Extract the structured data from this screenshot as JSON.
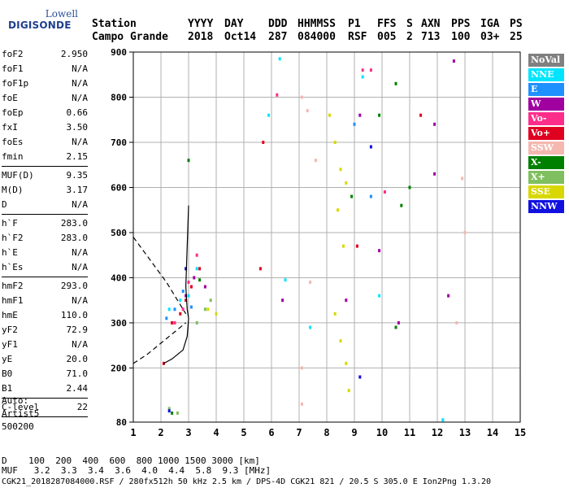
{
  "logo": {
    "top": "Lowell",
    "main": "DIGISONDE"
  },
  "header": {
    "columns": [
      {
        "label": "Station",
        "value": "Campo Grande"
      },
      {
        "label": "YYYY",
        "value": "2018"
      },
      {
        "label": "DAY",
        "value": "Oct14"
      },
      {
        "label": "DDD",
        "value": "287"
      },
      {
        "label": "HHMMSS",
        "value": "084000"
      },
      {
        "label": "P1",
        "value": "RSF"
      },
      {
        "label": "FFS",
        "value": "005"
      },
      {
        "label": "S",
        "value": "2"
      },
      {
        "label": "AXN",
        "value": "713"
      },
      {
        "label": "PPS",
        "value": "100"
      },
      {
        "label": "IGA",
        "value": "03+"
      },
      {
        "label": "PS",
        "value": "25"
      }
    ]
  },
  "params": [
    [
      {
        "name": "foF2",
        "value": "2.950"
      },
      {
        "name": "foF1",
        "value": "N/A"
      },
      {
        "name": "foF1p",
        "value": "N/A"
      },
      {
        "name": "foE",
        "value": "N/A"
      },
      {
        "name": "foEp",
        "value": "0.66"
      },
      {
        "name": "fxI",
        "value": "3.50"
      },
      {
        "name": "foEs",
        "value": "N/A"
      },
      {
        "name": "fmin",
        "value": "2.15"
      }
    ],
    [
      {
        "name": "MUF(D)",
        "value": "9.35"
      },
      {
        "name": "M(D)",
        "value": "3.17"
      },
      {
        "name": "D",
        "value": "N/A"
      }
    ],
    [
      {
        "name": "h`F",
        "value": "283.0"
      },
      {
        "name": "h`F2",
        "value": "283.0"
      },
      {
        "name": "h`E",
        "value": "N/A"
      },
      {
        "name": "h`Es",
        "value": "N/A"
      }
    ],
    [
      {
        "name": "hmF2",
        "value": "293.0"
      },
      {
        "name": "hmF1",
        "value": "N/A"
      },
      {
        "name": "hmE",
        "value": "110.0"
      },
      {
        "name": "yF2",
        "value": "72.9"
      },
      {
        "name": "yF1",
        "value": "N/A"
      },
      {
        "name": "yE",
        "value": "20.0"
      },
      {
        "name": "B0",
        "value": "71.0"
      },
      {
        "name": "B1",
        "value": "2.44"
      }
    ],
    [
      {
        "name": "C-level",
        "value": "22"
      }
    ]
  ],
  "auto": {
    "line1": "Auto:",
    "line2": "Artist5",
    "line3": "500200"
  },
  "legend": [
    {
      "label": "NoVal",
      "bg": "#808080",
      "fg": "#ffffff"
    },
    {
      "label": "NNE",
      "bg": "#00e5ff",
      "fg": "#ffffff"
    },
    {
      "label": "E",
      "bg": "#1e90ff",
      "fg": "#ffffff"
    },
    {
      "label": "W",
      "bg": "#a000a0",
      "fg": "#ffffff"
    },
    {
      "label": "Vo-",
      "bg": "#ff2d8a",
      "fg": "#ffffff"
    },
    {
      "label": "Vo+",
      "bg": "#e00020",
      "fg": "#ffffff"
    },
    {
      "label": "SSW",
      "bg": "#f4b8b0",
      "fg": "#ffffff"
    },
    {
      "label": "X-",
      "bg": "#008000",
      "fg": "#ffffff"
    },
    {
      "label": "X+",
      "bg": "#7fbf5f",
      "fg": "#ffffff"
    },
    {
      "label": "SSE",
      "bg": "#d8d800",
      "fg": "#ffffff"
    },
    {
      "label": "NNW",
      "bg": "#1010e0",
      "fg": "#ffffff"
    }
  ],
  "footer": {
    "row1": "D    100  200  400  600  800 1000 1500 3000 [km]",
    "row2": "MUF   3.2  3.3  3.4  3.6  4.0  4.4  5.8  9.3 [MHz]",
    "row3": "CGK21_2018287084000.RSF / 280fx512h 50 kHz 2.5 km / DPS-4D CGK21 821 / 20.5 S 305.0 E Ion2Png 1.3.20"
  },
  "chart_data": {
    "type": "scatter",
    "title": "",
    "xlabel": "",
    "ylabel": "",
    "xlim": [
      1,
      15
    ],
    "ylim": [
      80,
      900
    ],
    "xticks": [
      "1",
      "2",
      "3",
      "4",
      "5",
      "6",
      "7",
      "8",
      "9",
      "10",
      "11",
      "12",
      "13",
      "14",
      "15"
    ],
    "yticks": [
      "80",
      "200",
      "300",
      "400",
      "500",
      "600",
      "700",
      "800",
      "900"
    ],
    "series": [
      {
        "name": "NNE",
        "color": "#00e5ff",
        "points": [
          [
            2.3,
            330
          ],
          [
            2.7,
            350
          ],
          [
            3.0,
            360
          ],
          [
            3.3,
            420
          ],
          [
            9.3,
            845
          ],
          [
            5.9,
            760
          ],
          [
            6.3,
            885
          ],
          [
            6.5,
            395
          ],
          [
            9.9,
            360
          ],
          [
            12.2,
            85
          ],
          [
            7.4,
            290
          ]
        ]
      },
      {
        "name": "E",
        "color": "#1e90ff",
        "points": [
          [
            2.2,
            310
          ],
          [
            2.5,
            330
          ],
          [
            2.8,
            370
          ],
          [
            3.1,
            335
          ],
          [
            9.0,
            740
          ],
          [
            9.6,
            580
          ]
        ]
      },
      {
        "name": "W",
        "color": "#a000a0",
        "points": [
          [
            2.9,
            360
          ],
          [
            3.2,
            400
          ],
          [
            3.6,
            380
          ],
          [
            9.2,
            760
          ],
          [
            10.6,
            300
          ],
          [
            11.9,
            740
          ],
          [
            11.9,
            630
          ],
          [
            12.4,
            360
          ],
          [
            12.6,
            880
          ],
          [
            9.9,
            460
          ],
          [
            8.7,
            350
          ],
          [
            6.4,
            350
          ]
        ]
      },
      {
        "name": "Vo-",
        "color": "#ff2d8a",
        "points": [
          [
            2.5,
            300
          ],
          [
            2.8,
            330
          ],
          [
            3.0,
            390
          ],
          [
            3.3,
            450
          ],
          [
            9.3,
            860
          ],
          [
            9.6,
            860
          ],
          [
            6.2,
            805
          ],
          [
            10.1,
            590
          ]
        ]
      },
      {
        "name": "Vo+",
        "color": "#e00020",
        "points": [
          [
            2.4,
            300
          ],
          [
            2.7,
            320
          ],
          [
            2.9,
            350
          ],
          [
            3.1,
            380
          ],
          [
            3.4,
            420
          ],
          [
            2.1,
            210
          ],
          [
            5.7,
            700
          ],
          [
            5.6,
            420
          ],
          [
            9.1,
            470
          ],
          [
            11.4,
            760
          ]
        ]
      },
      {
        "name": "SSW",
        "color": "#f4b8b0",
        "points": [
          [
            7.1,
            800
          ],
          [
            7.3,
            770
          ],
          [
            7.4,
            390
          ],
          [
            7.1,
            200
          ],
          [
            12.9,
            620
          ],
          [
            13.0,
            500
          ],
          [
            12.7,
            300
          ],
          [
            7.6,
            660
          ],
          [
            7.1,
            120
          ]
        ]
      },
      {
        "name": "X-",
        "color": "#008000",
        "points": [
          [
            3.0,
            660
          ],
          [
            2.4,
            100
          ],
          [
            10.5,
            830
          ],
          [
            11.0,
            600
          ],
          [
            10.7,
            560
          ],
          [
            10.5,
            290
          ],
          [
            9.9,
            760
          ],
          [
            8.9,
            580
          ],
          [
            3.4,
            395
          ]
        ]
      },
      {
        "name": "X+",
        "color": "#7fbf5f",
        "points": [
          [
            2.3,
            110
          ],
          [
            2.6,
            100
          ],
          [
            3.6,
            330
          ],
          [
            3.8,
            350
          ],
          [
            3.3,
            300
          ]
        ]
      },
      {
        "name": "SSE",
        "color": "#d8d800",
        "points": [
          [
            8.1,
            760
          ],
          [
            8.3,
            700
          ],
          [
            8.5,
            640
          ],
          [
            8.7,
            610
          ],
          [
            8.4,
            550
          ],
          [
            8.6,
            470
          ],
          [
            8.3,
            320
          ],
          [
            8.5,
            260
          ],
          [
            8.7,
            210
          ],
          [
            8.8,
            150
          ],
          [
            3.7,
            330
          ],
          [
            4.0,
            320
          ]
        ]
      },
      {
        "name": "NNW",
        "color": "#1010e0",
        "points": [
          [
            2.3,
            105
          ],
          [
            2.9,
            420
          ],
          [
            9.2,
            180
          ],
          [
            9.6,
            690
          ]
        ]
      }
    ],
    "curves": [
      {
        "style": "solid",
        "color": "#000000",
        "points": [
          [
            2.1,
            210
          ],
          [
            2.4,
            220
          ],
          [
            2.6,
            230
          ],
          [
            2.8,
            240
          ],
          [
            2.95,
            270
          ],
          [
            3.0,
            310
          ],
          [
            2.95,
            330
          ],
          [
            2.9,
            380
          ],
          [
            2.95,
            470
          ],
          [
            3.0,
            560
          ]
        ]
      },
      {
        "style": "dashed",
        "color": "#000000",
        "points": [
          [
            1.0,
            490
          ],
          [
            1.6,
            440
          ],
          [
            2.2,
            390
          ],
          [
            2.6,
            350
          ],
          [
            2.9,
            320
          ]
        ]
      },
      {
        "style": "dashed",
        "color": "#000000",
        "points": [
          [
            1.0,
            210
          ],
          [
            1.5,
            230
          ],
          [
            2.0,
            255
          ],
          [
            2.5,
            280
          ],
          [
            2.9,
            300
          ]
        ]
      }
    ]
  }
}
